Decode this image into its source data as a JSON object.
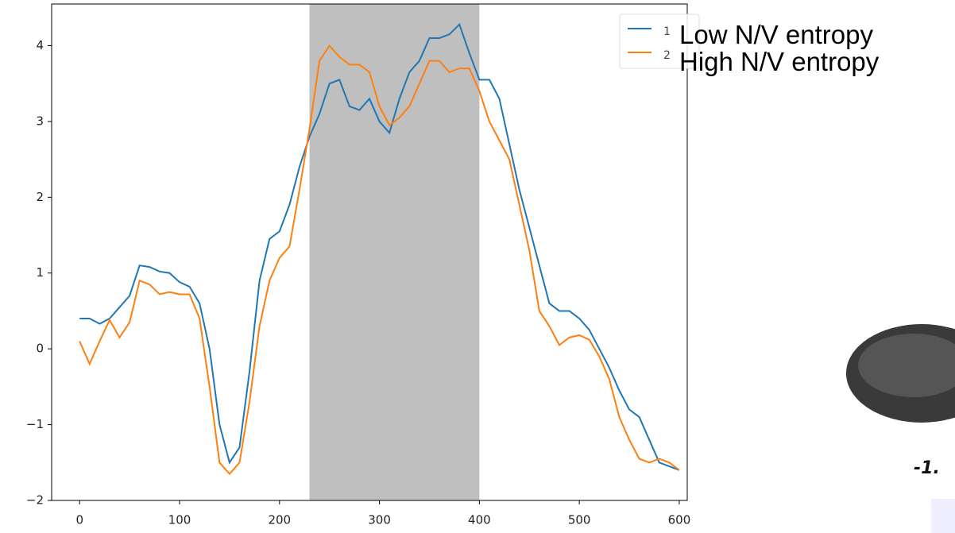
{
  "chart_data": {
    "type": "line",
    "x": [
      0,
      10,
      20,
      30,
      40,
      50,
      60,
      70,
      80,
      90,
      100,
      110,
      120,
      130,
      140,
      150,
      160,
      170,
      180,
      190,
      200,
      210,
      220,
      230,
      240,
      250,
      260,
      270,
      280,
      290,
      300,
      310,
      320,
      330,
      340,
      350,
      360,
      370,
      380,
      390,
      400,
      410,
      420,
      430,
      440,
      450,
      460,
      470,
      480,
      490,
      500,
      510,
      520,
      530,
      540,
      550,
      560,
      570,
      580,
      590,
      600
    ],
    "series": [
      {
        "name": "1",
        "color": "#1f77b4",
        "values": [
          0.4,
          0.4,
          0.33,
          0.4,
          0.55,
          0.7,
          1.1,
          1.08,
          1.02,
          1.0,
          0.88,
          0.82,
          0.6,
          0.0,
          -1.0,
          -1.5,
          -1.3,
          -0.3,
          0.9,
          1.45,
          1.55,
          1.9,
          2.4,
          2.8,
          3.1,
          3.5,
          3.55,
          3.2,
          3.15,
          3.3,
          3.0,
          2.85,
          3.3,
          3.65,
          3.8,
          4.1,
          4.1,
          4.15,
          4.28,
          3.9,
          3.55,
          3.55,
          3.3,
          2.7,
          2.1,
          1.6,
          1.1,
          0.6,
          0.5,
          0.5,
          0.4,
          0.25,
          0.0,
          -0.25,
          -0.55,
          -0.8,
          -0.9,
          -1.2,
          -1.5,
          -1.55,
          -1.6
        ]
      },
      {
        "name": "2",
        "color": "#ff7f0e",
        "values": [
          0.1,
          -0.2,
          0.1,
          0.38,
          0.15,
          0.35,
          0.9,
          0.85,
          0.72,
          0.75,
          0.72,
          0.72,
          0.4,
          -0.5,
          -1.5,
          -1.65,
          -1.5,
          -0.7,
          0.3,
          0.9,
          1.2,
          1.35,
          2.1,
          2.9,
          3.8,
          4.0,
          3.85,
          3.75,
          3.75,
          3.65,
          3.2,
          2.95,
          3.05,
          3.2,
          3.5,
          3.8,
          3.8,
          3.65,
          3.7,
          3.7,
          3.4,
          3.0,
          2.75,
          2.5,
          1.9,
          1.3,
          0.5,
          0.3,
          0.05,
          0.15,
          0.18,
          0.12,
          -0.1,
          -0.4,
          -0.9,
          -1.2,
          -1.45,
          -1.5,
          -1.45,
          -1.5,
          -1.6
        ]
      }
    ],
    "shade": [
      230,
      400
    ],
    "xlim": [
      -28,
      608
    ],
    "ylim": [
      -2,
      4.55
    ],
    "xticks": [
      0,
      100,
      200,
      300,
      400,
      500,
      600
    ],
    "yticks": [
      {
        "value": -2,
        "label": "−2"
      },
      {
        "value": -1,
        "label": "−1"
      },
      0,
      1,
      2,
      3,
      4
    ],
    "legend": "upper right",
    "annotations": [
      "Low N/V entropy",
      "High N/V entropy",
      "-1."
    ]
  }
}
